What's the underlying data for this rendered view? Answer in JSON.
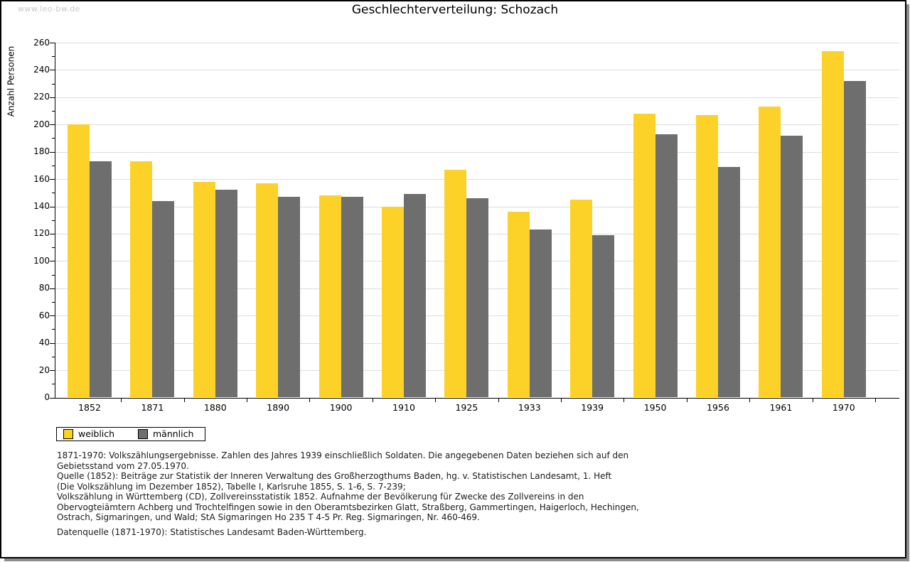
{
  "watermark": "www.leo-bw.de",
  "header": {
    "title": "Geschlechterverteilung: Schozach"
  },
  "chart_data": {
    "type": "bar",
    "title": "Geschlechterverteilung: Schozach",
    "xlabel": "",
    "ylabel": "Anzahl Personen",
    "ylim": [
      0,
      260
    ],
    "ytick_step": 20,
    "ytick_minor_step": 10,
    "grid": true,
    "legend_position": "bottom-left",
    "categories": [
      "1852",
      "1871",
      "1880",
      "1890",
      "1900",
      "1910",
      "1925",
      "1933",
      "1939",
      "1950",
      "1956",
      "1961",
      "1970"
    ],
    "series": [
      {
        "name": "weiblich",
        "color": "#FCD229",
        "values": [
          200,
          173,
          158,
          157,
          148,
          140,
          167,
          136,
          145,
          208,
          207,
          213,
          254
        ]
      },
      {
        "name": "männlich",
        "color": "#6E6E6E",
        "values": [
          173,
          144,
          152,
          147,
          147,
          149,
          146,
          123,
          119,
          193,
          169,
          192,
          232
        ]
      }
    ]
  },
  "footnotes": [
    "1871-1970: Volkszählungsergebnisse. Zahlen des Jahres 1939 einschließlich Soldaten. Die angegebenen Daten beziehen sich auf den",
    "Gebietsstand vom 27.05.1970.",
    "Quelle (1852): Beiträge zur Statistik der Inneren Verwaltung des Großherzogthums Baden, hg. v. Statistischen Landesamt, 1. Heft",
    "(Die Volkszählung im Dezember 1852), Tabelle I, Karlsruhe 1855, S. 1-6, S. 7-239;",
    "Volkszählung in Württemberg (CD), Zollvereinsstatistik 1852. Aufnahme der Bevölkerung für Zwecke des Zollvereins in den",
    "Obervogteiämtern Achberg und Trochtelfingen sowie in den Oberamtsbezirken Glatt, Straßberg, Gammertingen, Haigerloch, Hechingen,",
    "Ostrach, Sigmaringen, und Wald; StA Sigmaringen Ho 235 T 4-5 Pr. Reg. Sigmaringen, Nr. 460-469.",
    "",
    "Datenquelle (1871-1970): Statistisches Landesamt Baden-Württemberg."
  ],
  "colors": {
    "weiblich": "#FCD229",
    "maennlich": "#6E6E6E",
    "gridline": "#DDDDDD",
    "axis": "#000000",
    "watermark": "#C8C8C8"
  }
}
